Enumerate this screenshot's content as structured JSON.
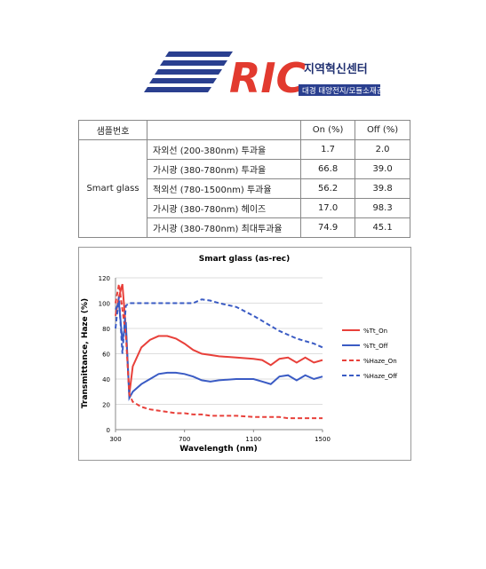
{
  "header": {
    "logo": "RIC",
    "title": "지역혁신센터",
    "subtitle": "대경 태양전지/모듈소재공정"
  },
  "table": {
    "header": {
      "sample": "샘플번호",
      "on": "On (%)",
      "off": "Off (%)"
    },
    "sample": "Smart glass",
    "rows": [
      [
        "자외선 (200-380nm) 투과율",
        "1.7",
        "2.0"
      ],
      [
        "가시광 (380-780nm) 투과율",
        "66.8",
        "39.0"
      ],
      [
        "적외선 (780-1500nm) 투과율",
        "56.2",
        "39.8"
      ],
      [
        "가시광 (380-780nm) 헤이즈",
        "17.0",
        "98.3"
      ],
      [
        "가시광 (380-780nm) 최대투과율",
        "74.9",
        "45.1"
      ]
    ]
  },
  "chart_data": {
    "type": "line",
    "title": "Smart glass (as-rec)",
    "x_label": "Wavelength (nm)",
    "y_label": "Transmittance, Haze (%)",
    "x": [
      300,
      320,
      340,
      360,
      380,
      400,
      450,
      500,
      550,
      600,
      650,
      700,
      750,
      800,
      850,
      900,
      1000,
      1100,
      1150,
      1200,
      1250,
      1300,
      1350,
      1400,
      1450,
      1500
    ],
    "xlim": [
      300,
      1500
    ],
    "xticks": [
      300,
      700,
      1100,
      1500
    ],
    "ylim": [
      0,
      120
    ],
    "yticks": [
      0,
      20,
      40,
      60,
      80,
      100,
      120
    ],
    "series": [
      {
        "name": "%Tt_On",
        "color": "#e8403a",
        "dash": false,
        "values": [
          90,
          105,
          115,
          80,
          28,
          50,
          65,
          71,
          74,
          74,
          72,
          68,
          63,
          60,
          59,
          58,
          57,
          56,
          55,
          51,
          56,
          57,
          53,
          57,
          53,
          55
        ]
      },
      {
        "name": "%Tt_Off",
        "color": "#3a5bc4",
        "dash": false,
        "values": [
          95,
          100,
          70,
          85,
          25,
          30,
          36,
          40,
          44,
          45,
          45,
          44,
          42,
          39,
          38,
          39,
          40,
          40,
          38,
          36,
          42,
          43,
          39,
          43,
          40,
          42
        ]
      },
      {
        "name": "%Haze_On",
        "color": "#e8403a",
        "dash": true,
        "values": [
          100,
          115,
          95,
          75,
          28,
          22,
          18,
          16,
          15,
          14,
          13,
          13,
          12,
          12,
          11,
          11,
          11,
          10,
          10,
          10,
          10,
          9,
          9,
          9,
          9,
          9
        ]
      },
      {
        "name": "%Haze_Off",
        "color": "#3a5bc4",
        "dash": true,
        "values": [
          80,
          105,
          60,
          98,
          100,
          100,
          100,
          100,
          100,
          100,
          100,
          100,
          100,
          103,
          102,
          100,
          97,
          90,
          86,
          82,
          78,
          75,
          72,
          70,
          68,
          65
        ]
      }
    ]
  }
}
